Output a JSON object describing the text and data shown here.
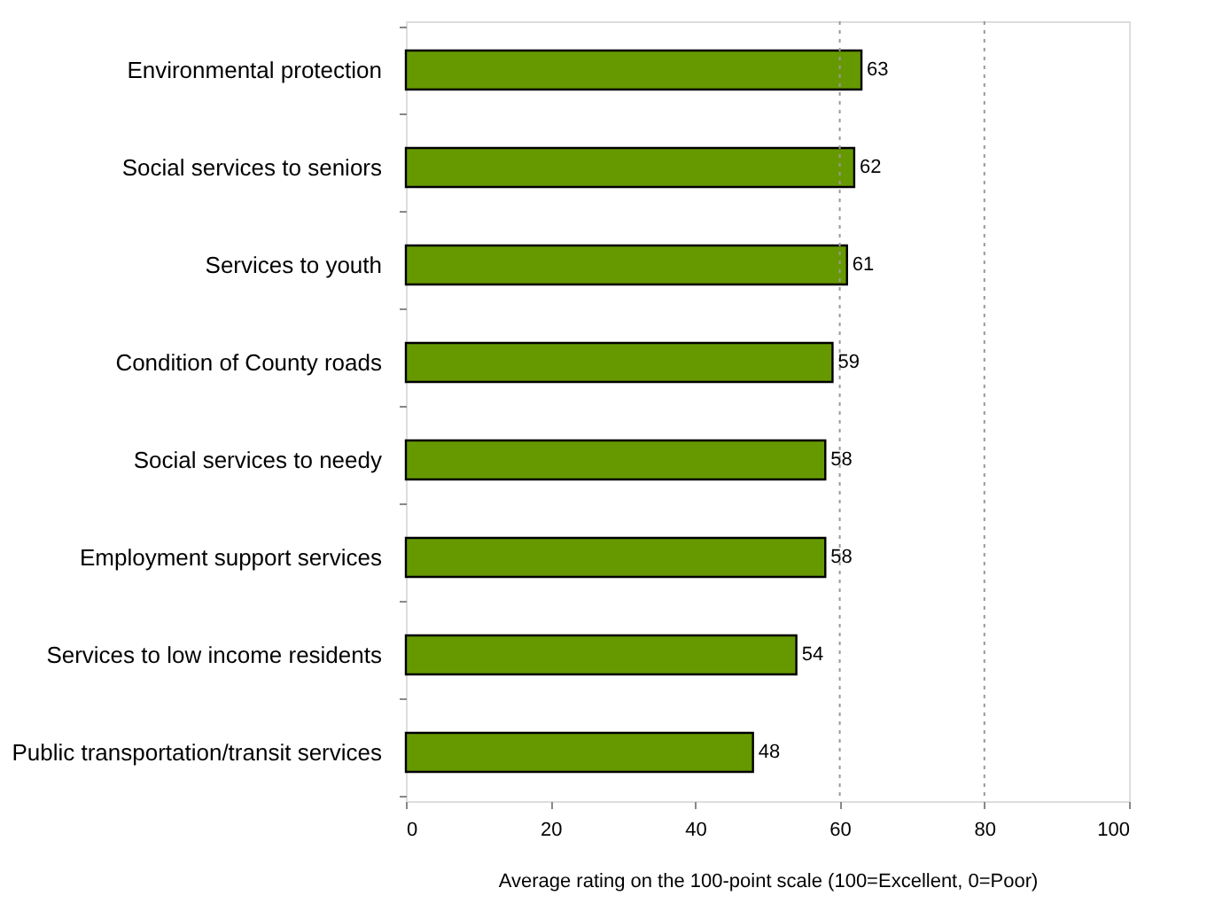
{
  "chart_data": {
    "type": "bar",
    "orientation": "horizontal",
    "xlabel": "Average rating on the 100-point scale (100=Excellent, 0=Poor)",
    "categories": [
      "Environmental protection",
      "Social services to seniors",
      "Services to youth",
      "Condition of County roads",
      "Social services to needy",
      "Employment support services",
      "Services to low income residents",
      "Public transportation/transit services"
    ],
    "values": [
      63,
      62,
      61,
      59,
      58,
      58,
      54,
      48
    ],
    "color": "#669900",
    "xlim": [
      0,
      100
    ],
    "xticks": [
      0,
      20,
      40,
      60,
      80,
      100
    ],
    "grid": false,
    "data_labels": true,
    "ref_lines": [
      {
        "axis": "x",
        "value": 60,
        "line_style": "dotted",
        "color": "#999999"
      },
      {
        "axis": "x",
        "value": 80,
        "line_style": "dotted",
        "color": "#999999"
      }
    ]
  }
}
